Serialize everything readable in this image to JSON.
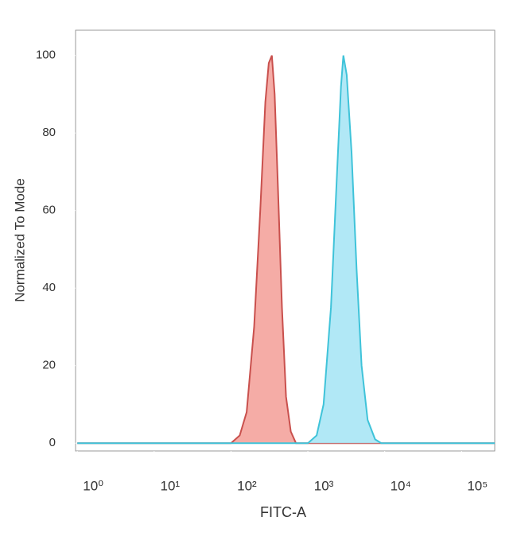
{
  "chart_data": {
    "type": "area",
    "xlabel": "FITC-A",
    "ylabel": "Normalized To Mode",
    "xscale": "log",
    "xlim": [
      0.95,
      270000
    ],
    "xticks": [
      {
        "value": 1,
        "label": "10⁰"
      },
      {
        "value": 10,
        "label": "10¹"
      },
      {
        "value": 100,
        "label": "10²"
      },
      {
        "value": 1000,
        "label": "10³"
      },
      {
        "value": 10000,
        "label": "10⁴"
      },
      {
        "value": 100000,
        "label": "10⁵"
      }
    ],
    "ylim": [
      -2,
      106.5
    ],
    "yticks": [
      0,
      20,
      40,
      60,
      80,
      100
    ],
    "series": [
      {
        "color": "#c9504d",
        "fill": "#f4a39c",
        "x": [
          1,
          100,
          130,
          160,
          200,
          240,
          280,
          310,
          340,
          370,
          410,
          460,
          520,
          600,
          700,
          270000
        ],
        "values": [
          0,
          0,
          2,
          8,
          30,
          60,
          88,
          98,
          100,
          90,
          65,
          35,
          12,
          3,
          0,
          0
        ]
      },
      {
        "color": "#3fc3d9",
        "fill": "#a8e6f5",
        "x": [
          1,
          1000,
          1300,
          1600,
          2000,
          2400,
          2700,
          2900,
          3200,
          3700,
          4300,
          5000,
          6000,
          7500,
          9000,
          270000
        ],
        "values": [
          0,
          0,
          2,
          10,
          35,
          70,
          92,
          100,
          95,
          75,
          45,
          20,
          6,
          1,
          0,
          0
        ]
      }
    ]
  }
}
